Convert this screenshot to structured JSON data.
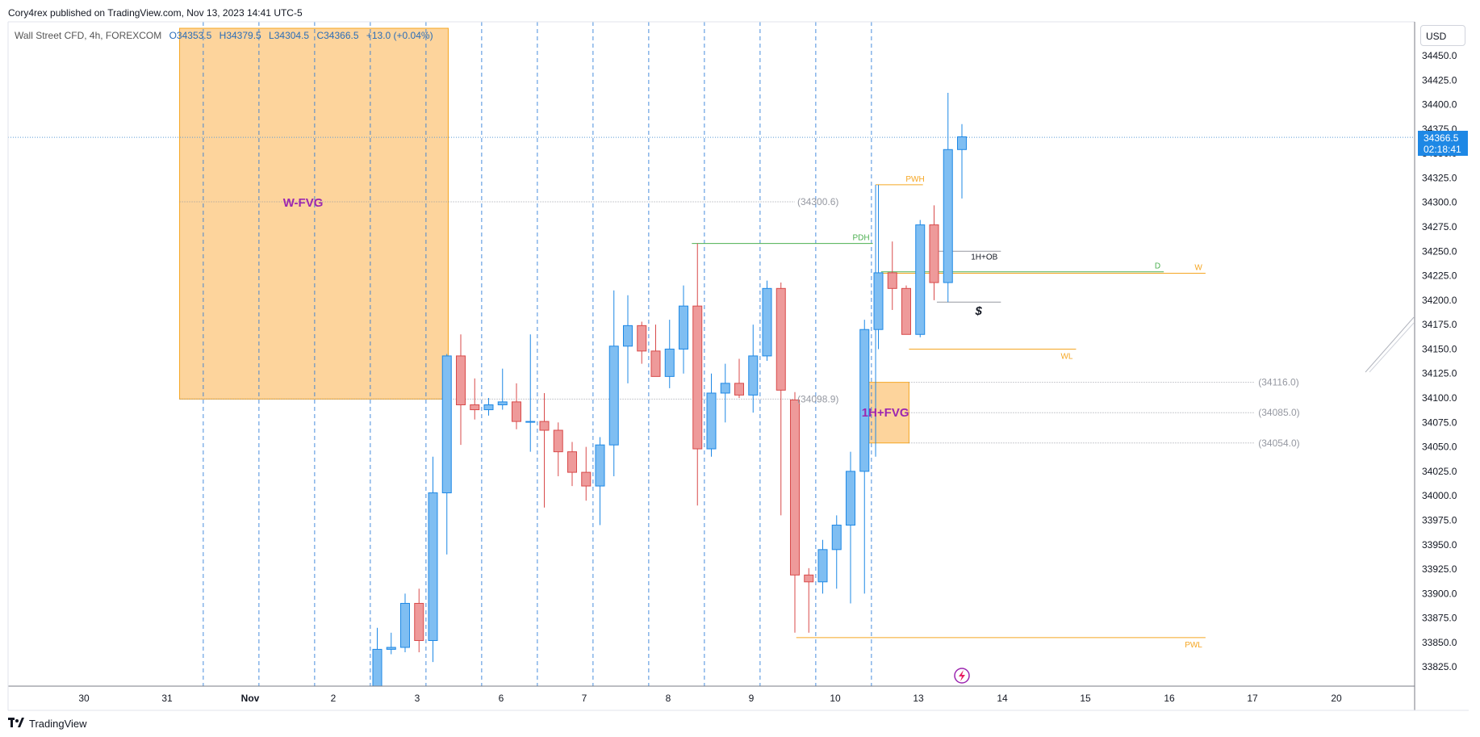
{
  "publisher": "Cory4rex published on TradingView.com, Nov 13, 2023 14:41 UTC-5",
  "legend": {
    "symbol": "Wall Street CFD, 4h, FOREXCOM",
    "open": "O34353.5",
    "high": "H34379.5",
    "low": "L34304.5",
    "close": "C34366.5",
    "change": "+13.0 (+0.04%)"
  },
  "currency": "USD",
  "last_price": "34366.5",
  "countdown": "02:18:41",
  "footer": {
    "brand": "TradingView",
    "logo_icon": "tv-logo-icon"
  },
  "colors": {
    "up_fill": "#7fbef2",
    "up_border": "#1e88e5",
    "down_fill": "#ee9a9a",
    "down_border": "#d84a4a",
    "zone_fill": "#fdd49c",
    "zone_border": "#f5a623",
    "label_purple": "#9c27b0",
    "orange_line": "#f5a623",
    "green_line": "#4caf50",
    "grid_dash": "#2a7ad8",
    "last_price_line": "#5b9bd5"
  },
  "chart_data": {
    "type": "candlestick",
    "y_ticks": [
      "34450.0",
      "34425.0",
      "34400.0",
      "34375.0",
      "34350.0",
      "34325.0",
      "34300.0",
      "34275.0",
      "34250.0",
      "34225.0",
      "34200.0",
      "34175.0",
      "34150.0",
      "34125.0",
      "34100.0",
      "34075.0",
      "34050.0",
      "34025.0",
      "34000.0",
      "33975.0",
      "33950.0",
      "33925.0",
      "33900.0",
      "33875.0",
      "33850.0",
      "33825.0"
    ],
    "x_ticks": [
      "30",
      "31",
      "Nov",
      "2",
      "3",
      "6",
      "7",
      "8",
      "9",
      "10",
      "13",
      "14",
      "15",
      "16",
      "17",
      "20"
    ],
    "ylim": [
      33810,
      34475
    ],
    "candles": [
      {
        "s": 0,
        "o": 33780,
        "h": 33865,
        "l": 33770,
        "c": 33843
      },
      {
        "s": 1,
        "o": 33843,
        "h": 33860,
        "l": 33838,
        "c": 33845
      },
      {
        "s": 2,
        "o": 33845,
        "h": 33900,
        "l": 33840,
        "c": 33890
      },
      {
        "s": 3,
        "o": 33890,
        "h": 33905,
        "l": 33840,
        "c": 33852
      },
      {
        "s": 4,
        "o": 33852,
        "h": 34040,
        "l": 33830,
        "c": 34003
      },
      {
        "s": 5,
        "o": 34003,
        "h": 34145,
        "l": 33940,
        "c": 34143
      },
      {
        "s": 6,
        "o": 34143,
        "h": 34165,
        "l": 34052,
        "c": 34093
      },
      {
        "s": 7,
        "o": 34093,
        "h": 34120,
        "l": 34078,
        "c": 34088
      },
      {
        "s": 8,
        "o": 34088,
        "h": 34100,
        "l": 34082,
        "c": 34093
      },
      {
        "s": 9,
        "o": 34093,
        "h": 34130,
        "l": 34088,
        "c": 34096
      },
      {
        "s": 10,
        "o": 34096,
        "h": 34115,
        "l": 34068,
        "c": 34076
      },
      {
        "s": 11,
        "o": 34076,
        "h": 34165,
        "l": 34045,
        "c": 34076
      },
      {
        "s": 12,
        "o": 34076,
        "h": 34105,
        "l": 33988,
        "c": 34067
      },
      {
        "s": 13,
        "o": 34067,
        "h": 34075,
        "l": 34020,
        "c": 34045
      },
      {
        "s": 14,
        "o": 34045,
        "h": 34055,
        "l": 34010,
        "c": 34024
      },
      {
        "s": 15,
        "o": 34024,
        "h": 34050,
        "l": 33995,
        "c": 34010
      },
      {
        "s": 16,
        "o": 34010,
        "h": 34060,
        "l": 33970,
        "c": 34052
      },
      {
        "s": 17,
        "o": 34052,
        "h": 34210,
        "l": 34020,
        "c": 34153
      },
      {
        "s": 18,
        "o": 34153,
        "h": 34205,
        "l": 34115,
        "c": 34174
      },
      {
        "s": 19,
        "o": 34174,
        "h": 34178,
        "l": 34135,
        "c": 34148
      },
      {
        "s": 20,
        "o": 34148,
        "h": 34175,
        "l": 34122,
        "c": 34122
      },
      {
        "s": 21,
        "o": 34122,
        "h": 34180,
        "l": 34110,
        "c": 34150
      },
      {
        "s": 22,
        "o": 34150,
        "h": 34215,
        "l": 34125,
        "c": 34194
      },
      {
        "s": 23,
        "o": 34194,
        "h": 34258,
        "l": 33990,
        "c": 34048
      },
      {
        "s": 24,
        "o": 34048,
        "h": 34125,
        "l": 34040,
        "c": 34105
      },
      {
        "s": 25,
        "o": 34105,
        "h": 34135,
        "l": 34075,
        "c": 34115
      },
      {
        "s": 26,
        "o": 34115,
        "h": 34140,
        "l": 34100,
        "c": 34103
      },
      {
        "s": 27,
        "o": 34103,
        "h": 34175,
        "l": 34085,
        "c": 34143
      },
      {
        "s": 28,
        "o": 34143,
        "h": 34220,
        "l": 34138,
        "c": 34212
      },
      {
        "s": 29,
        "o": 34212,
        "h": 34218,
        "l": 33980,
        "c": 34108
      },
      {
        "s": 30,
        "o": 34098,
        "h": 34106,
        "l": 33860,
        "c": 33919
      },
      {
        "s": 31,
        "o": 33919,
        "h": 33926,
        "l": 33860,
        "c": 33912
      },
      {
        "s": 32,
        "o": 33912,
        "h": 33955,
        "l": 33900,
        "c": 33945
      },
      {
        "s": 33,
        "o": 33945,
        "h": 33980,
        "l": 33905,
        "c": 33970
      },
      {
        "s": 34,
        "o": 33970,
        "h": 34045,
        "l": 33890,
        "c": 34025
      },
      {
        "s": 35,
        "o": 34025,
        "h": 34180,
        "l": 33900,
        "c": 34170
      },
      {
        "s": 36,
        "o": 34170,
        "h": 34318,
        "l": 34150,
        "c": 34228
      },
      {
        "s": 37,
        "o": 34228,
        "h": 34260,
        "l": 34190,
        "c": 34212
      },
      {
        "s": 38,
        "o": 34212,
        "h": 34215,
        "l": 34165,
        "c": 34165
      },
      {
        "s": 39,
        "o": 34165,
        "h": 34282,
        "l": 34162,
        "c": 34277
      },
      {
        "s": 40,
        "o": 34277,
        "h": 34297,
        "l": 34200,
        "c": 34218
      },
      {
        "s": 41,
        "o": 34218,
        "h": 34412,
        "l": 34198,
        "c": 34354
      },
      {
        "s": 42,
        "o": 34354,
        "h": 34380,
        "l": 34304,
        "c": 34367
      }
    ],
    "zones": [
      {
        "label": "W-FVG",
        "from_x": -14.2,
        "to_x": 5.1,
        "top": 34478,
        "bottom": 34098.9
      },
      {
        "label": "1H+FVG",
        "from_x": 34.8,
        "to_x": 38.2,
        "top": 34116.0,
        "bottom": 34054.0
      }
    ],
    "price_lines": [
      {
        "label": "PWH",
        "from_x": 35.8,
        "to_x": 39.2,
        "y": 34318,
        "color": "orange",
        "label_side": "end"
      },
      {
        "label": "PDH",
        "from_x": 22.6,
        "to_x": 35.6,
        "y": 34258,
        "color": "green",
        "label_side": "end"
      },
      {
        "label": "1H+OB",
        "from_x": 40.2,
        "to_x": 44.8,
        "y": 34250,
        "color": "gray",
        "label_side": "end"
      },
      {
        "label": "D",
        "from_x": 36.2,
        "to_x": 56.5,
        "y": 34229,
        "color": "green",
        "label_side": "end"
      },
      {
        "label": "W",
        "from_x": 36.2,
        "to_x": 59.5,
        "y": 34227.5,
        "color": "orange",
        "label_side": "end"
      },
      {
        "label": "",
        "from_x": 40.2,
        "to_x": 44.8,
        "y": 34198,
        "color": "gray",
        "label_side": "end"
      },
      {
        "label": "WL",
        "from_x": 38.2,
        "to_x": 50.2,
        "y": 34150,
        "color": "orange",
        "label_side": "end"
      },
      {
        "label": "PWL",
        "from_x": 30.1,
        "to_x": 59.5,
        "y": 33855,
        "color": "orange",
        "label_side": "end"
      }
    ],
    "dotted_levels": [
      {
        "label": "(34300.6)",
        "from_x": -14.2,
        "to_x": 30.0,
        "y": 34300.6
      },
      {
        "label": "(34098.9)",
        "from_x": -14.2,
        "to_x": 30.0,
        "y": 34098.9
      },
      {
        "label": "(34116.0)",
        "from_x": 38.2,
        "to_x": 63.0,
        "y": 34116.0
      },
      {
        "label": "(34085.0)",
        "from_x": 38.2,
        "to_x": 63.0,
        "y": 34085.0
      },
      {
        "label": "(34054.0)",
        "from_x": 38.2,
        "to_x": 63.0,
        "y": 34054.0
      }
    ],
    "annotations": [
      {
        "text": "$",
        "x": 43.2,
        "y": 34185
      }
    ],
    "session_breaks": [
      -12.5,
      -8.5,
      -4.5,
      -0.5,
      3.5,
      7.5,
      11.5,
      15.5,
      19.5,
      23.5,
      27.5,
      31.5,
      35.5
    ],
    "last_price": 34366.5
  }
}
